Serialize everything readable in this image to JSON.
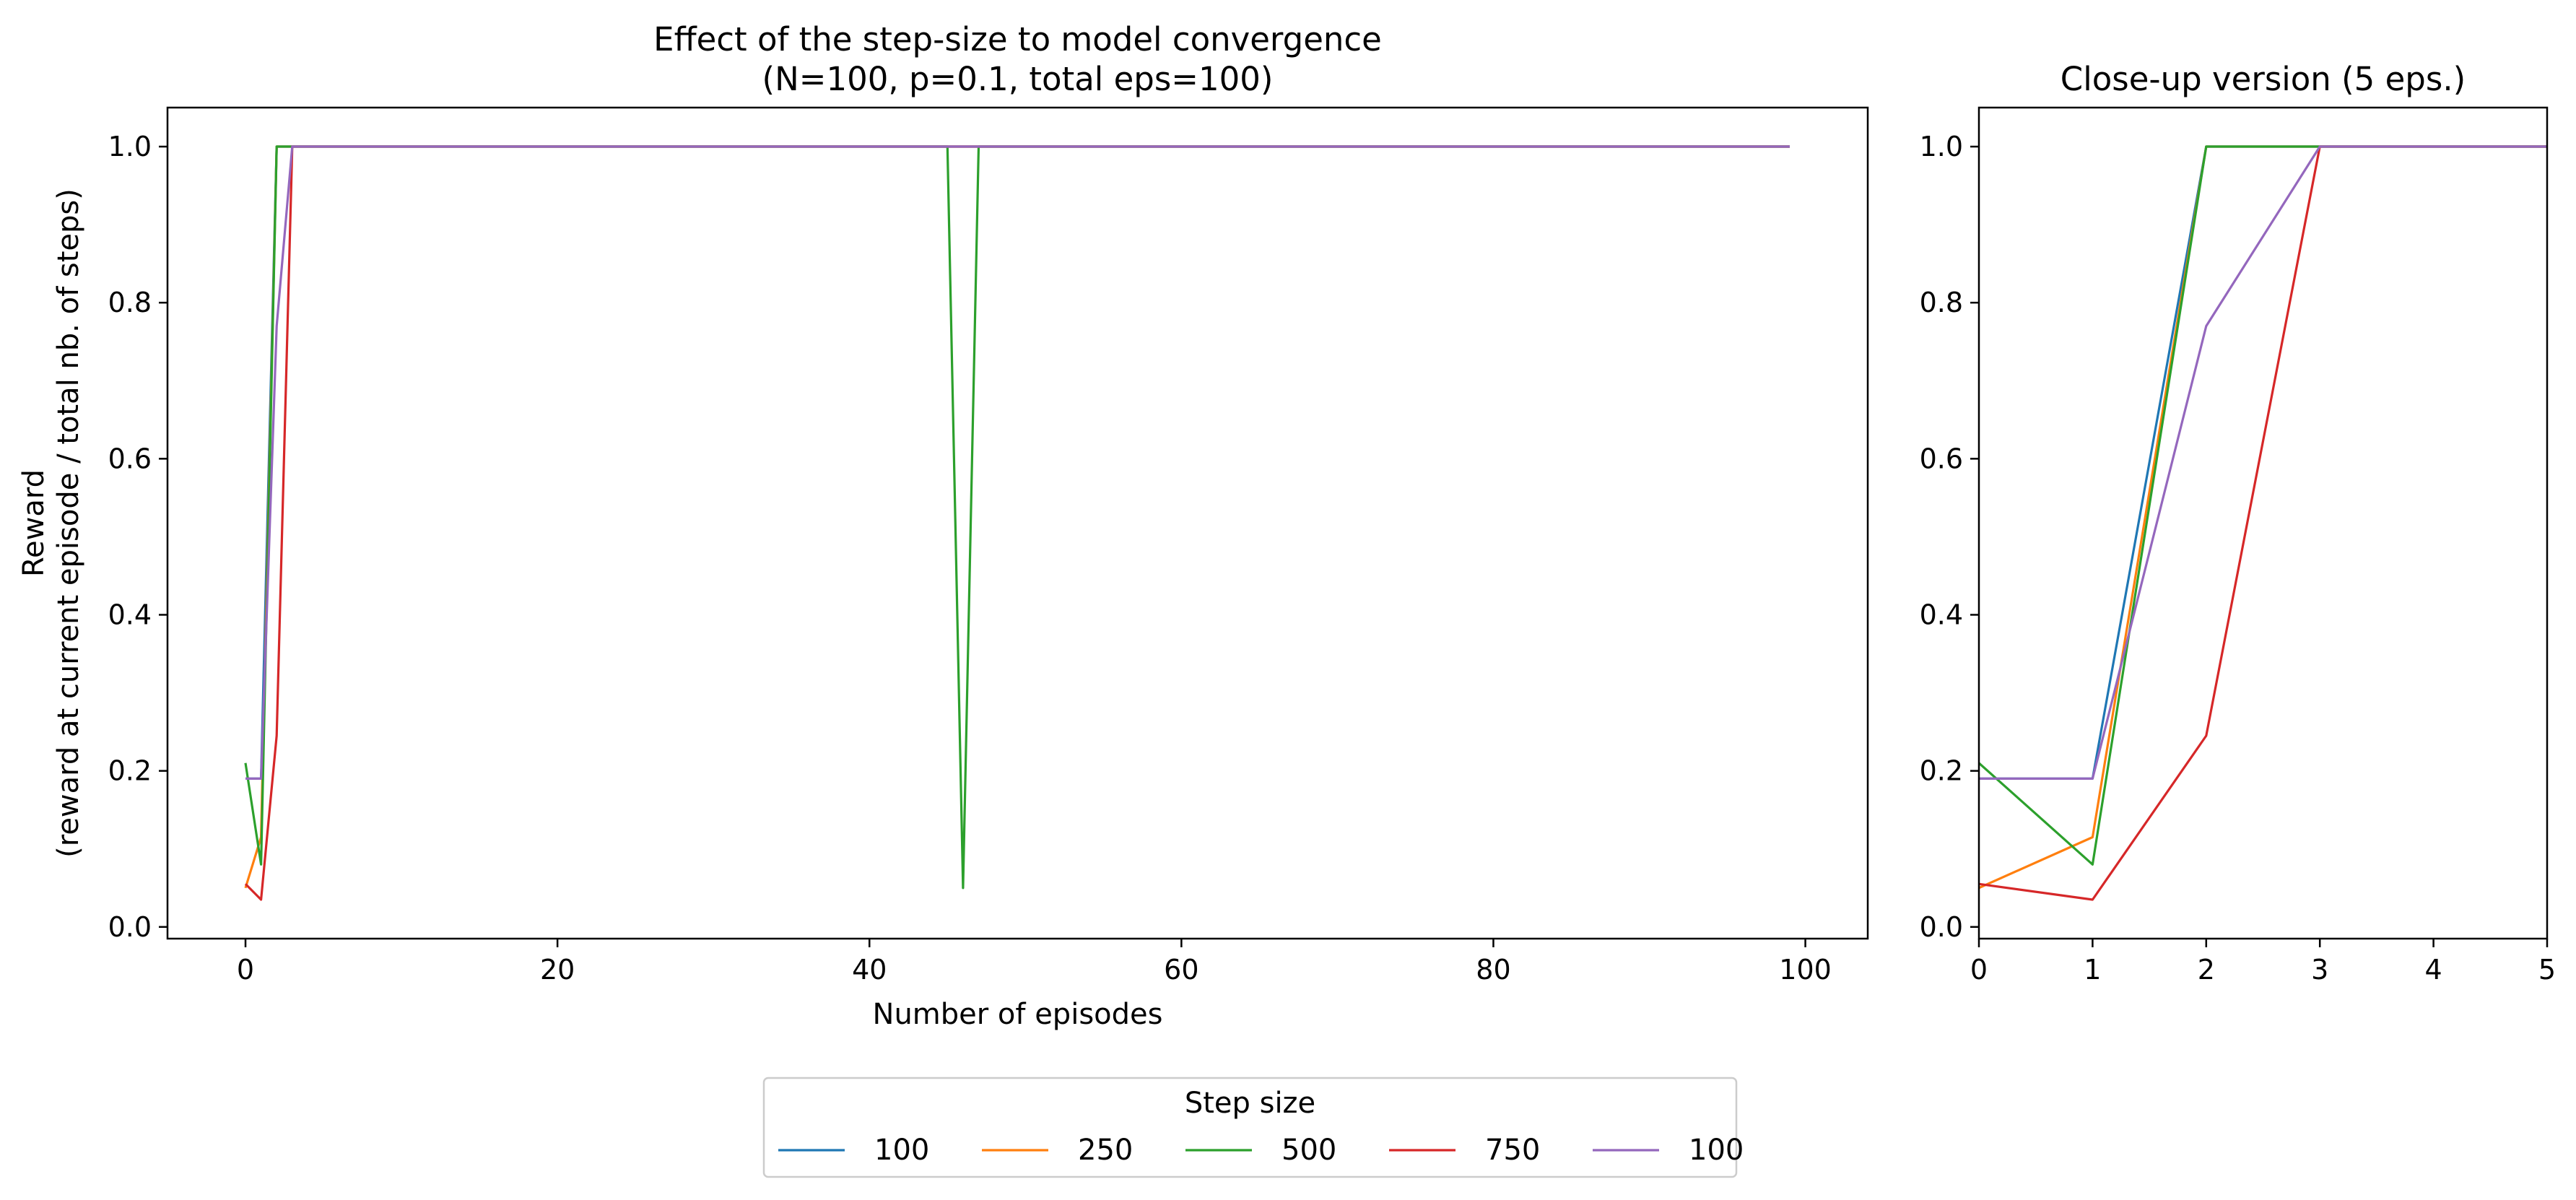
{
  "chart_data": [
    {
      "type": "line",
      "title": "Effect of the step-size to model convergence\n(N=100, p=0.1, total eps=100)",
      "xlabel": "Number of episodes",
      "ylabel": "Reward\n(reward at current episode / total nb. of steps)",
      "xlim": [
        -5,
        104
      ],
      "ylim": [
        -0.015,
        1.05
      ],
      "xticks": [
        0,
        20,
        40,
        60,
        80,
        100
      ],
      "yticks": [
        0.0,
        0.2,
        0.4,
        0.6,
        0.8,
        1.0
      ],
      "xtick_labels": [
        "0",
        "20",
        "40",
        "60",
        "80",
        "100"
      ],
      "ytick_labels": [
        "0.0",
        "0.2",
        "0.4",
        "0.6",
        "0.8",
        "1.0"
      ],
      "x_range": [
        0,
        99
      ],
      "series": [
        {
          "name": "100",
          "color": "#1f77b4",
          "points": [
            [
              0,
              0.19
            ],
            [
              1,
              0.19
            ],
            [
              2,
              1.0
            ],
            [
              3,
              1.0
            ],
            [
              99,
              1.0
            ]
          ]
        },
        {
          "name": "250",
          "color": "#ff7f0e",
          "points": [
            [
              0,
              0.05
            ],
            [
              1,
              0.115
            ],
            [
              2,
              1.0
            ],
            [
              3,
              1.0
            ],
            [
              99,
              1.0
            ]
          ]
        },
        {
          "name": "500",
          "color": "#2ca02c",
          "points": [
            [
              0,
              0.21
            ],
            [
              1,
              0.08
            ],
            [
              2,
              1.0
            ],
            [
              45,
              1.0
            ],
            [
              46,
              0.05
            ],
            [
              47,
              1.0
            ],
            [
              99,
              1.0
            ]
          ]
        },
        {
          "name": "750",
          "color": "#d62728",
          "points": [
            [
              0,
              0.055
            ],
            [
              1,
              0.035
            ],
            [
              2,
              0.245
            ],
            [
              3,
              1.0
            ],
            [
              99,
              1.0
            ]
          ]
        },
        {
          "name": "100",
          "color": "#9467bd",
          "points": [
            [
              0,
              0.19
            ],
            [
              1,
              0.19
            ],
            [
              2,
              0.77
            ],
            [
              3,
              1.0
            ],
            [
              99,
              1.0
            ]
          ]
        }
      ],
      "grid": false
    },
    {
      "type": "line",
      "title": "Close-up version (5 eps.)",
      "xlabel": "",
      "ylabel": "",
      "xlim": [
        0,
        5
      ],
      "ylim": [
        -0.015,
        1.05
      ],
      "xticks": [
        0,
        1,
        2,
        3,
        4,
        5
      ],
      "yticks": [
        0.0,
        0.2,
        0.4,
        0.6,
        0.8,
        1.0
      ],
      "xtick_labels": [
        "0",
        "1",
        "2",
        "3",
        "4",
        "5"
      ],
      "ytick_labels": [
        "0.0",
        "0.2",
        "0.4",
        "0.6",
        "0.8",
        "1.0"
      ],
      "series": [
        {
          "name": "100",
          "color": "#1f77b4",
          "points": [
            [
              0,
              0.19
            ],
            [
              1,
              0.19
            ],
            [
              2,
              1.0
            ],
            [
              3,
              1.0
            ],
            [
              5,
              1.0
            ]
          ]
        },
        {
          "name": "250",
          "color": "#ff7f0e",
          "points": [
            [
              0,
              0.05
            ],
            [
              1,
              0.115
            ],
            [
              2,
              1.0
            ],
            [
              3,
              1.0
            ],
            [
              5,
              1.0
            ]
          ]
        },
        {
          "name": "500",
          "color": "#2ca02c",
          "points": [
            [
              0,
              0.21
            ],
            [
              1,
              0.08
            ],
            [
              2,
              1.0
            ],
            [
              3,
              1.0
            ],
            [
              5,
              1.0
            ]
          ]
        },
        {
          "name": "750",
          "color": "#d62728",
          "points": [
            [
              0,
              0.055
            ],
            [
              1,
              0.035
            ],
            [
              2,
              0.245
            ],
            [
              3,
              1.0
            ],
            [
              5,
              1.0
            ]
          ]
        },
        {
          "name": "100",
          "color": "#9467bd",
          "points": [
            [
              0,
              0.19
            ],
            [
              1,
              0.19
            ],
            [
              2,
              0.77
            ],
            [
              3,
              1.0
            ],
            [
              5,
              1.0
            ]
          ]
        }
      ],
      "grid": false
    }
  ],
  "legend": {
    "title": "Step size",
    "placement": "bottom-center",
    "entries": [
      "100",
      "250",
      "500",
      "750",
      "100"
    ]
  }
}
